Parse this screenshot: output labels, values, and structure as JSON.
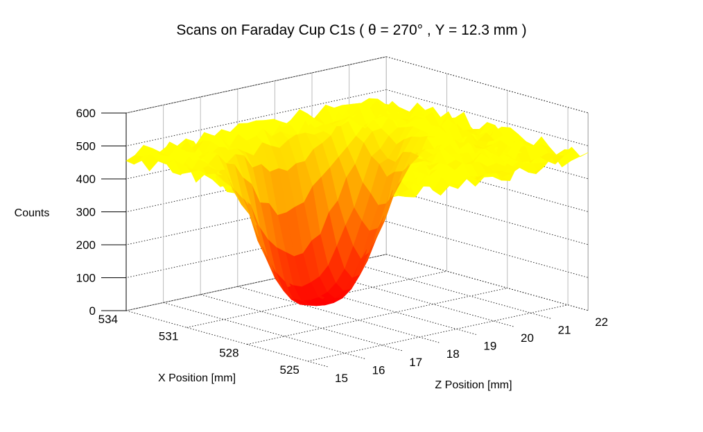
{
  "chart_data": {
    "type": "surface",
    "title": "Scans on Faraday Cup C1s ( θ = 270° , Y = 12.3 mm )",
    "xlabel": "X Position [mm]",
    "ylabel": "Z Position [mm]",
    "zlabel": "Counts",
    "xlim": [
      524,
      534
    ],
    "ylim": [
      15,
      22
    ],
    "zlim": [
      0,
      600
    ],
    "x_ticks": [
      "534",
      "531",
      "528",
      "525"
    ],
    "y_ticks": [
      "15",
      "16",
      "17",
      "18",
      "19",
      "20",
      "21",
      "22"
    ],
    "z_ticks": [
      "0",
      "100",
      "200",
      "300",
      "400",
      "500",
      "600"
    ],
    "grid": true,
    "colormap": {
      "low": "#ff0000",
      "mid": "#ff9900",
      "high": "#ffff00"
    },
    "surface": {
      "baseline_counts": 470,
      "min_counts": 0,
      "dip_center_x": 530.5,
      "dip_center_z": 18.3,
      "dip_sigma_mm": 1.2
    }
  }
}
